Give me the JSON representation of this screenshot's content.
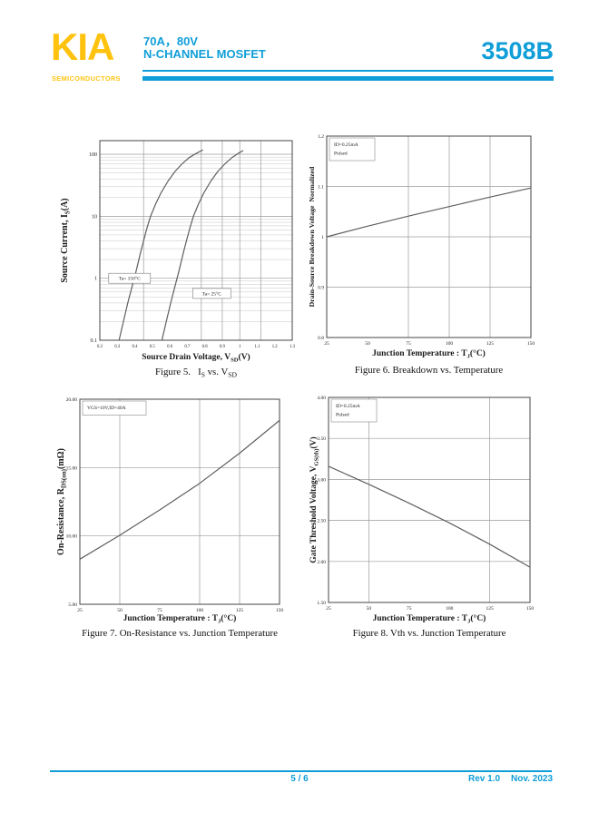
{
  "header": {
    "logo_text": "KIA",
    "logo_subtitle": "SEMICONDUCTORS",
    "rating": "70A，80V",
    "device_type": "N-CHANNEL MOSFET",
    "part_number": "3508B",
    "accent_color": "#0f9ed8",
    "logo_color": "#ffc20e"
  },
  "footer": {
    "page_indicator": "5 / 6",
    "revision": "Rev 1.0",
    "date": "Nov. 2023"
  },
  "chart_style": {
    "line": "#5f5f5f",
    "grid": "#9b9b9b",
    "minor_grid": "#c6c6c6",
    "frame": "#454545",
    "text": "#1a1a1a",
    "annotation_border": "#7a7a7a",
    "background": "#ffffff"
  },
  "chart_data": [
    {
      "id": "fig5",
      "type": "line",
      "caption": "Figure 5.   Is vs. Vsd",
      "caption_parts": [
        {
          "t": "Figure 5.   I"
        },
        {
          "t": "S",
          "sub": true
        },
        {
          "t": " vs. V"
        },
        {
          "t": "SD",
          "sub": true
        }
      ],
      "xlabel": "Source Drain Voltage, Vsd(V)",
      "xlabel_parts": [
        {
          "t": "Source Drain Voltage, V"
        },
        {
          "t": "SD",
          "sub": true
        },
        {
          "t": "(V)"
        }
      ],
      "ylabel": "Source Current, Is(A)",
      "ylabel_parts": [
        {
          "t": "Source Current, I"
        },
        {
          "t": "S",
          "sub": true
        },
        {
          "t": "(A)"
        }
      ],
      "x_scale": "linear",
      "y_scale": "log",
      "xlim": [
        0.2,
        1.3
      ],
      "ylim": [
        0.1,
        166
      ],
      "x_ticks": [
        {
          "v": 0.2,
          "t": "0.2"
        },
        {
          "v": 0.3,
          "t": "0.3"
        },
        {
          "v": 0.4,
          "t": "0.4"
        },
        {
          "v": 0.5,
          "t": "0.5"
        },
        {
          "v": 0.6,
          "t": "0.6"
        },
        {
          "v": 0.7,
          "t": "0.7"
        },
        {
          "v": 0.8,
          "t": "0.8"
        },
        {
          "v": 0.9,
          "t": "0.9"
        },
        {
          "v": 1,
          "t": "1"
        },
        {
          "v": 1.1,
          "t": "1.1"
        },
        {
          "v": 1.2,
          "t": "1.2"
        },
        {
          "v": 1.3,
          "t": "1.3"
        }
      ],
      "y_ticks": [
        {
          "v": 0.1,
          "t": "0.1"
        },
        {
          "v": 1,
          "t": "1"
        },
        {
          "v": 10,
          "t": "10"
        },
        {
          "v": 100,
          "t": "100"
        }
      ],
      "grid_x": [
        0.45,
        0.78,
        0.9,
        1.0,
        1.12
      ],
      "grid_y": [
        1,
        10,
        100
      ],
      "log_minor_grid": true,
      "series": [
        {
          "name": "Ta= 150°C",
          "points": [
            [
              0.31,
              0.1
            ],
            [
              0.335,
              0.2
            ],
            [
              0.36,
              0.4
            ],
            [
              0.385,
              0.75
            ],
            [
              0.41,
              1.4
            ],
            [
              0.43,
              2.4
            ],
            [
              0.45,
              4
            ],
            [
              0.47,
              6.5
            ],
            [
              0.49,
              10
            ],
            [
              0.52,
              16
            ],
            [
              0.55,
              24
            ],
            [
              0.59,
              37
            ],
            [
              0.63,
              53
            ],
            [
              0.67,
              70
            ],
            [
              0.71,
              88
            ],
            [
              0.75,
              103
            ],
            [
              0.79,
              118
            ]
          ]
        },
        {
          "name": "Ta= 25°C",
          "points": [
            [
              0.555,
              0.1
            ],
            [
              0.58,
              0.2
            ],
            [
              0.605,
              0.4
            ],
            [
              0.63,
              0.75
            ],
            [
              0.655,
              1.4
            ],
            [
              0.675,
              2.4
            ],
            [
              0.695,
              4
            ],
            [
              0.715,
              6.5
            ],
            [
              0.735,
              10
            ],
            [
              0.765,
              16
            ],
            [
              0.795,
              24
            ],
            [
              0.835,
              37
            ],
            [
              0.875,
              53
            ],
            [
              0.915,
              70
            ],
            [
              0.955,
              88
            ],
            [
              0.99,
              103
            ],
            [
              1.02,
              115
            ]
          ]
        }
      ],
      "annotations": [
        {
          "x": 0.37,
          "y": 1.0,
          "text": "Ta= 150°C"
        },
        {
          "x": 0.84,
          "y": 0.57,
          "text": "Ta= 25°C"
        }
      ]
    },
    {
      "id": "fig6",
      "type": "line",
      "caption": "Figure 6. Breakdown vs. Temperature",
      "caption_parts": [
        {
          "t": "Figure 6. Breakdown vs. Temperature"
        }
      ],
      "xlabel": "Junction Temperature : TJ(°C)",
      "xlabel_parts": [
        {
          "t": "Junction Temperature : T"
        },
        {
          "t": "J",
          "sub": true
        },
        {
          "t": "(°C)"
        }
      ],
      "ylabel": "Drain-Source Breakdown Voltage Normalized",
      "ylabel_parts": [
        {
          "t": "Drain-Source Breakdown Voltage  Normalized"
        }
      ],
      "x_scale": "linear",
      "y_scale": "linear",
      "xlim": [
        25,
        150
      ],
      "ylim": [
        0.8,
        1.2
      ],
      "x_ticks": [
        {
          "v": 25,
          "t": "25"
        },
        {
          "v": 50,
          "t": "50"
        },
        {
          "v": 75,
          "t": "75"
        },
        {
          "v": 100,
          "t": "100"
        },
        {
          "v": 125,
          "t": "125"
        },
        {
          "v": 150,
          "t": "150"
        }
      ],
      "y_ticks": [
        {
          "v": 0.8,
          "t": "0.8"
        },
        {
          "v": 0.9,
          "t": "0.9"
        },
        {
          "v": 1,
          "t": "1"
        },
        {
          "v": 1.1,
          "t": "1.1"
        },
        {
          "v": 1.2,
          "t": "1.2"
        }
      ],
      "grid_x": [
        75,
        100,
        125
      ],
      "grid_y": [
        0.9,
        1,
        1.1
      ],
      "series": [
        {
          "name": "BVdss normalized",
          "points": [
            [
              25,
              1.0
            ],
            [
              50,
              1.021
            ],
            [
              75,
              1.041
            ],
            [
              100,
              1.06
            ],
            [
              125,
              1.079
            ],
            [
              150,
              1.097
            ]
          ]
        }
      ],
      "legend": {
        "lines": [
          "ID=0.25mA",
          "Pulsed"
        ]
      }
    },
    {
      "id": "fig7",
      "type": "line",
      "caption": "Figure 7. On-Resistance vs. Junction Temperature",
      "caption_parts": [
        {
          "t": "Figure 7. On-Resistance vs. Junction Temperature"
        }
      ],
      "xlabel": "Junction Temperature : TJ(°C)",
      "xlabel_parts": [
        {
          "t": "Junction Temperature : T"
        },
        {
          "t": "J",
          "sub": true
        },
        {
          "t": "(°C)"
        }
      ],
      "ylabel": "On-Resistance, RDS(on)(mΩ)",
      "ylabel_parts": [
        {
          "t": "On-Resistance, R"
        },
        {
          "t": "DS(on)",
          "sub": true
        },
        {
          "t": "(mΩ)"
        }
      ],
      "x_scale": "linear",
      "y_scale": "linear",
      "xlim": [
        25,
        150
      ],
      "ylim": [
        5,
        20
      ],
      "x_ticks": [
        {
          "v": 25,
          "t": "25"
        },
        {
          "v": 50,
          "t": "50"
        },
        {
          "v": 75,
          "t": "75"
        },
        {
          "v": 100,
          "t": "100"
        },
        {
          "v": 125,
          "t": "125"
        },
        {
          "v": 150,
          "t": "150"
        }
      ],
      "y_ticks": [
        {
          "v": 5,
          "t": "5.00"
        },
        {
          "v": 10,
          "t": "10.00"
        },
        {
          "v": 15,
          "t": "15.00"
        },
        {
          "v": 20,
          "t": "20.00"
        }
      ],
      "grid_x": [
        50,
        100,
        125
      ],
      "grid_y": [
        10,
        15
      ],
      "series": [
        {
          "name": "RDS(on)",
          "points": [
            [
              25,
              8.3
            ],
            [
              50,
              10.05
            ],
            [
              75,
              11.9
            ],
            [
              100,
              13.85
            ],
            [
              125,
              16.05
            ],
            [
              150,
              18.45
            ]
          ]
        }
      ],
      "legend": {
        "lines": [
          "VGS=10V,ID=40A"
        ]
      }
    },
    {
      "id": "fig8",
      "type": "line",
      "caption": "Figure 8. Vth vs. Junction Temperature",
      "caption_parts": [
        {
          "t": "Figure 8. Vth vs. Junction Temperature"
        }
      ],
      "xlabel": "Junction Temperature : TJ(°C)",
      "xlabel_parts": [
        {
          "t": "Junction Temperature : T"
        },
        {
          "t": "J",
          "sub": true
        },
        {
          "t": "(°C)"
        }
      ],
      "ylabel": "Gate Threshold Voltage, VGS(th)(V)",
      "ylabel_parts": [
        {
          "t": "Gate Threshold Voltage, V"
        },
        {
          "t": "GS(th)",
          "sub": true
        },
        {
          "t": "(V)"
        }
      ],
      "x_scale": "linear",
      "y_scale": "linear",
      "xlim": [
        25,
        150
      ],
      "ylim": [
        1.5,
        4
      ],
      "x_ticks": [
        {
          "v": 25,
          "t": "25"
        },
        {
          "v": 50,
          "t": "50"
        },
        {
          "v": 75,
          "t": "75"
        },
        {
          "v": 100,
          "t": "100"
        },
        {
          "v": 125,
          "t": "125"
        },
        {
          "v": 150,
          "t": "150"
        }
      ],
      "y_ticks": [
        {
          "v": 1.5,
          "t": "1.50"
        },
        {
          "v": 2,
          "t": "2.00"
        },
        {
          "v": 2.5,
          "t": "2.50"
        },
        {
          "v": 3,
          "t": "3.00"
        },
        {
          "v": 3.5,
          "t": "3.50"
        },
        {
          "v": 4,
          "t": "4.00"
        }
      ],
      "grid_x": [
        50,
        125
      ],
      "grid_y": [
        2,
        2.5,
        3,
        3.5
      ],
      "series": [
        {
          "name": "VGS(th)",
          "points": [
            [
              25,
              3.16
            ],
            [
              50,
              2.94
            ],
            [
              75,
              2.71
            ],
            [
              100,
              2.47
            ],
            [
              125,
              2.21
            ],
            [
              150,
              1.93
            ]
          ]
        }
      ],
      "legend": {
        "lines": [
          "ID=0.25mA",
          "Pulsed"
        ]
      }
    }
  ]
}
